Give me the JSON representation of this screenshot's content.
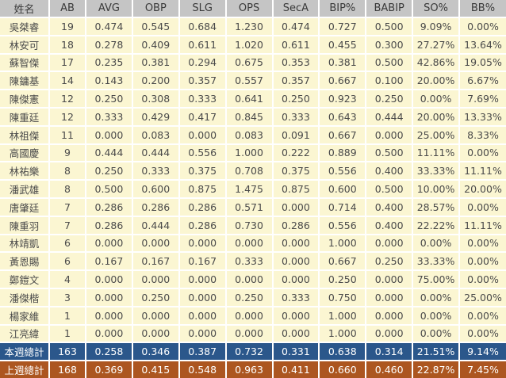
{
  "colors": {
    "header_bg": "#c5c5c5",
    "header_text": "#3a3a3a",
    "row_bg": "#fbf6d2",
    "grid": "#ffffff",
    "data_text": "#4a4a4a",
    "week_total_bg": "#2b578b",
    "lastweek_total_bg": "#ac5620",
    "total_text": "#ffffff"
  },
  "chart_data": {
    "type": "table",
    "title": "",
    "columns": [
      "姓名",
      "AB",
      "AVG",
      "OBP",
      "SLG",
      "OPS",
      "SecA",
      "BIP%",
      "BABIP",
      "SO%",
      "BB%"
    ],
    "rows": [
      [
        "吳桀睿",
        "19",
        "0.474",
        "0.545",
        "0.684",
        "1.230",
        "0.474",
        "0.727",
        "0.500",
        "9.09%",
        "0.00%"
      ],
      [
        "林安可",
        "18",
        "0.278",
        "0.409",
        "0.611",
        "1.020",
        "0.611",
        "0.455",
        "0.300",
        "27.27%",
        "13.64%"
      ],
      [
        "蘇智傑",
        "17",
        "0.235",
        "0.381",
        "0.294",
        "0.675",
        "0.353",
        "0.381",
        "0.500",
        "42.86%",
        "19.05%"
      ],
      [
        "陳鏞基",
        "14",
        "0.143",
        "0.200",
        "0.357",
        "0.557",
        "0.357",
        "0.667",
        "0.100",
        "20.00%",
        "6.67%"
      ],
      [
        "陳傑憲",
        "12",
        "0.250",
        "0.308",
        "0.333",
        "0.641",
        "0.250",
        "0.923",
        "0.250",
        "0.00%",
        "7.69%"
      ],
      [
        "陳重廷",
        "12",
        "0.333",
        "0.429",
        "0.417",
        "0.845",
        "0.333",
        "0.643",
        "0.444",
        "20.00%",
        "13.33%"
      ],
      [
        "林祖傑",
        "11",
        "0.000",
        "0.083",
        "0.000",
        "0.083",
        "0.091",
        "0.667",
        "0.000",
        "25.00%",
        "8.33%"
      ],
      [
        "高國慶",
        "9",
        "0.444",
        "0.444",
        "0.556",
        "1.000",
        "0.222",
        "0.889",
        "0.500",
        "11.11%",
        "0.00%"
      ],
      [
        "林祐樂",
        "8",
        "0.250",
        "0.333",
        "0.375",
        "0.708",
        "0.375",
        "0.556",
        "0.400",
        "33.33%",
        "11.11%"
      ],
      [
        "潘武雄",
        "8",
        "0.500",
        "0.600",
        "0.875",
        "1.475",
        "0.875",
        "0.600",
        "0.500",
        "10.00%",
        "20.00%"
      ],
      [
        "唐肇廷",
        "7",
        "0.286",
        "0.286",
        "0.286",
        "0.571",
        "0.000",
        "0.714",
        "0.400",
        "28.57%",
        "0.00%"
      ],
      [
        "陳重羽",
        "7",
        "0.286",
        "0.444",
        "0.286",
        "0.730",
        "0.286",
        "0.556",
        "0.400",
        "22.22%",
        "11.11%"
      ],
      [
        "林靖凱",
        "6",
        "0.000",
        "0.000",
        "0.000",
        "0.000",
        "0.000",
        "1.000",
        "0.000",
        "0.00%",
        "0.00%"
      ],
      [
        "黃恩賜",
        "6",
        "0.167",
        "0.167",
        "0.167",
        "0.333",
        "0.000",
        "0.667",
        "0.250",
        "33.33%",
        "0.00%"
      ],
      [
        "鄭鎧文",
        "4",
        "0.000",
        "0.000",
        "0.000",
        "0.000",
        "0.000",
        "0.250",
        "0.000",
        "75.00%",
        "0.00%"
      ],
      [
        "潘傑楷",
        "3",
        "0.000",
        "0.250",
        "0.000",
        "0.250",
        "0.333",
        "0.750",
        "0.000",
        "0.00%",
        "25.00%"
      ],
      [
        "楊家維",
        "1",
        "0.000",
        "0.000",
        "0.000",
        "0.000",
        "0.000",
        "1.000",
        "0.000",
        "0.00%",
        "0.00%"
      ],
      [
        "江亮緯",
        "1",
        "0.000",
        "0.000",
        "0.000",
        "0.000",
        "0.000",
        "1.000",
        "0.000",
        "0.00%",
        "0.00%"
      ]
    ],
    "totals": [
      [
        "本週總計",
        "163",
        "0.258",
        "0.346",
        "0.387",
        "0.732",
        "0.331",
        "0.638",
        "0.314",
        "21.51%",
        "9.14%"
      ],
      [
        "上週總計",
        "168",
        "0.369",
        "0.415",
        "0.548",
        "0.963",
        "0.411",
        "0.660",
        "0.460",
        "22.87%",
        "7.45%"
      ]
    ]
  }
}
